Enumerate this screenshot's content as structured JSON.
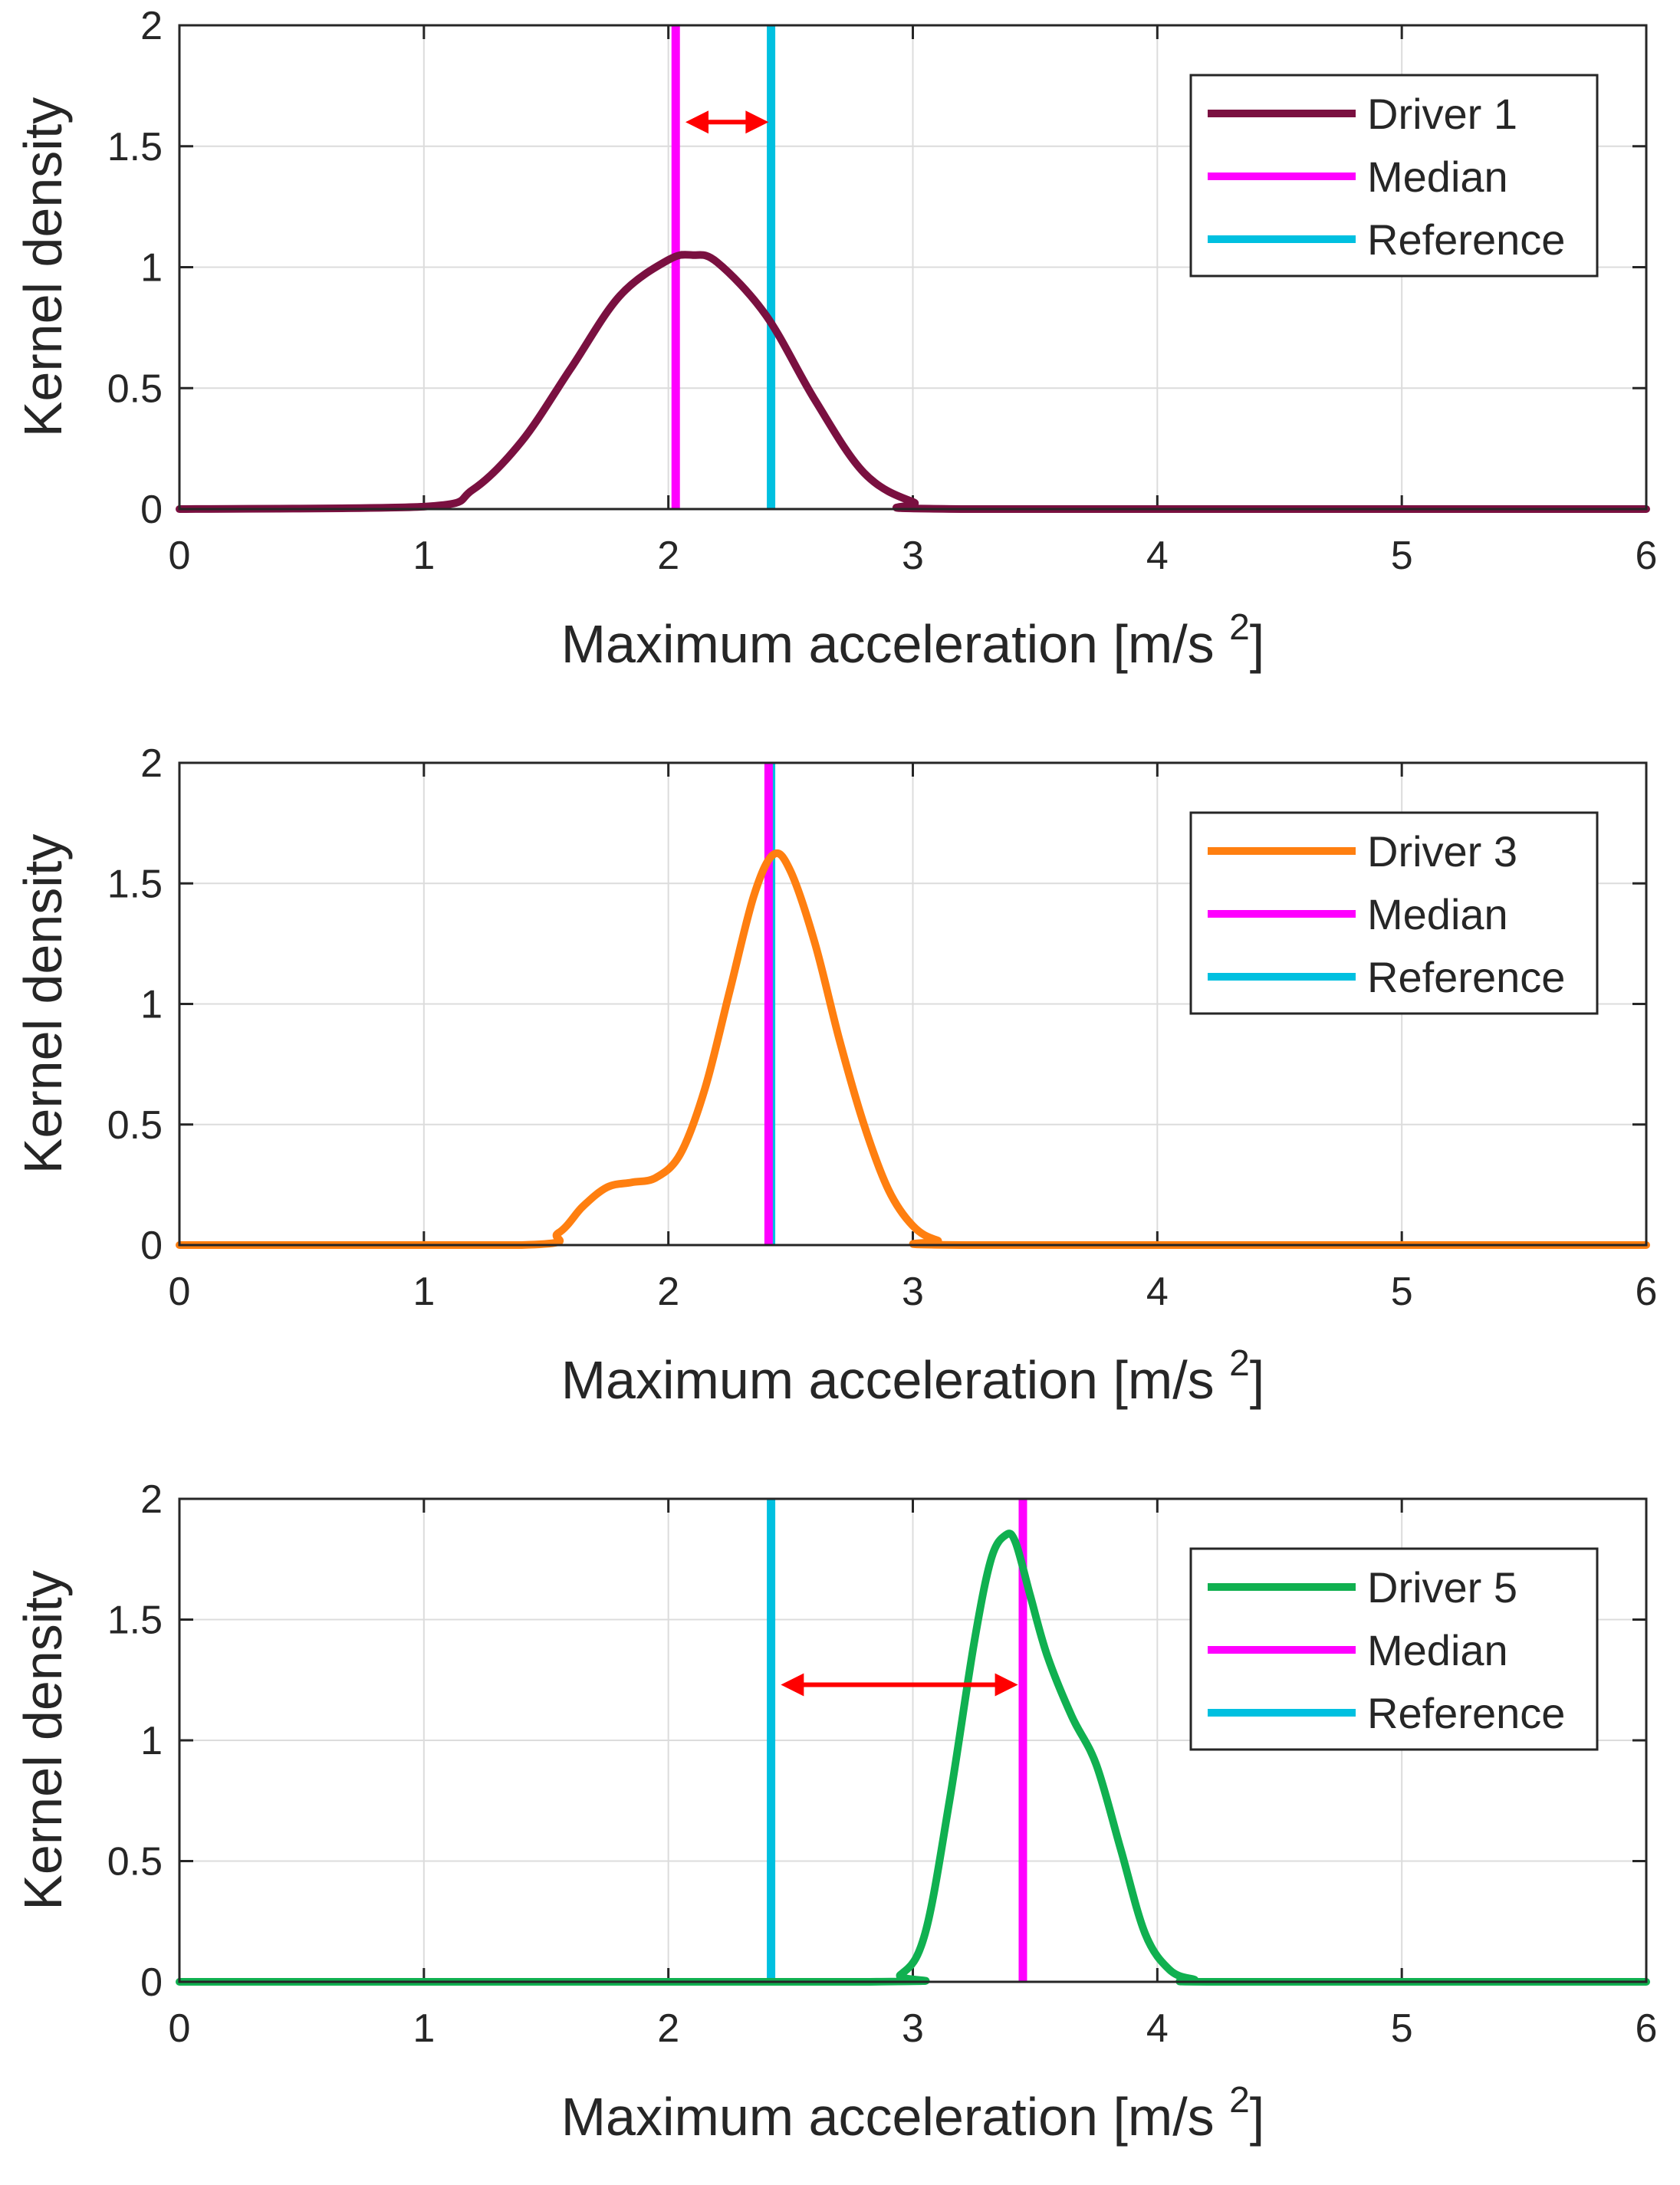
{
  "chart_data": [
    {
      "type": "line",
      "xlabel": "Maximum acceleration [m/s",
      "xlabel_sup": "2",
      "xlabel_end": "]",
      "ylabel": "Kernel density",
      "xlim": [
        0,
        6
      ],
      "ylim": [
        0,
        2
      ],
      "xticks": [
        "0",
        "1",
        "2",
        "3",
        "4",
        "5",
        "6"
      ],
      "yticks": [
        "0",
        "0.5",
        "1",
        "1.5",
        "2"
      ],
      "grid": true,
      "legend_position": "top-right",
      "series": [
        {
          "name": "Driver 1",
          "color": "#7a1040",
          "x": [
            0,
            1.0,
            1.2,
            1.4,
            1.6,
            1.8,
            2.0,
            2.1,
            2.2,
            2.4,
            2.6,
            2.8,
            3.0,
            3.2,
            6.0
          ],
          "y": [
            0,
            0.01,
            0.08,
            0.28,
            0.58,
            0.88,
            1.03,
            1.05,
            1.02,
            0.8,
            0.45,
            0.15,
            0.03,
            0.0,
            0
          ]
        }
      ],
      "median": 2.03,
      "median_color": "#ff00ff",
      "reference": 2.42,
      "reference_color": "#00c0e0",
      "median_label": "Median",
      "reference_label": "Reference",
      "arrow": {
        "from": 2.07,
        "to": 2.41,
        "y": 1.6,
        "color": "#ff0000"
      }
    },
    {
      "type": "line",
      "xlabel": "Maximum acceleration [m/s",
      "xlabel_sup": "2",
      "xlabel_end": "]",
      "ylabel": "Kernel density",
      "xlim": [
        0,
        6
      ],
      "ylim": [
        0,
        2
      ],
      "xticks": [
        "0",
        "1",
        "2",
        "3",
        "4",
        "5",
        "6"
      ],
      "yticks": [
        "0",
        "0.5",
        "1",
        "1.5",
        "2"
      ],
      "grid": true,
      "legend_position": "top-right",
      "series": [
        {
          "name": "Driver 3",
          "color": "#ff7f10",
          "x": [
            0,
            1.4,
            1.55,
            1.65,
            1.75,
            1.85,
            1.95,
            2.05,
            2.15,
            2.25,
            2.35,
            2.43,
            2.5,
            2.6,
            2.7,
            2.8,
            2.9,
            3.0,
            3.1,
            3.25,
            6.0
          ],
          "y": [
            0,
            0.0,
            0.05,
            0.16,
            0.24,
            0.26,
            0.28,
            0.38,
            0.65,
            1.05,
            1.45,
            1.62,
            1.55,
            1.25,
            0.85,
            0.5,
            0.23,
            0.08,
            0.02,
            0.0,
            0
          ]
        }
      ],
      "median": 2.41,
      "median_color": "#ff00ff",
      "reference": 2.42,
      "reference_color": "#00c0e0",
      "median_label": "Median",
      "reference_label": "Reference"
    },
    {
      "type": "line",
      "xlabel": "Maximum acceleration [m/s",
      "xlabel_sup": "2",
      "xlabel_end": "]",
      "ylabel": "Kernel density",
      "xlim": [
        0,
        6
      ],
      "ylim": [
        0,
        2
      ],
      "xticks": [
        "0",
        "1",
        "2",
        "3",
        "4",
        "5",
        "6"
      ],
      "yticks": [
        "0",
        "0.5",
        "1",
        "1.5",
        "2"
      ],
      "grid": true,
      "legend_position": "top-right",
      "series": [
        {
          "name": "Driver 5",
          "color": "#10b050",
          "x": [
            0,
            2.8,
            2.95,
            3.05,
            3.15,
            3.25,
            3.32,
            3.38,
            3.42,
            3.48,
            3.55,
            3.65,
            3.75,
            3.85,
            3.95,
            4.05,
            4.15,
            4.25,
            6.0
          ],
          "y": [
            0,
            0.0,
            0.03,
            0.2,
            0.75,
            1.4,
            1.75,
            1.85,
            1.82,
            1.6,
            1.35,
            1.1,
            0.9,
            0.55,
            0.2,
            0.05,
            0.01,
            0.0,
            0
          ]
        }
      ],
      "median": 3.45,
      "median_color": "#ff00ff",
      "reference": 2.42,
      "reference_color": "#00c0e0",
      "median_label": "Median",
      "reference_label": "Reference",
      "arrow": {
        "from": 2.46,
        "to": 3.43,
        "y": 1.23,
        "color": "#ff0000"
      }
    }
  ]
}
